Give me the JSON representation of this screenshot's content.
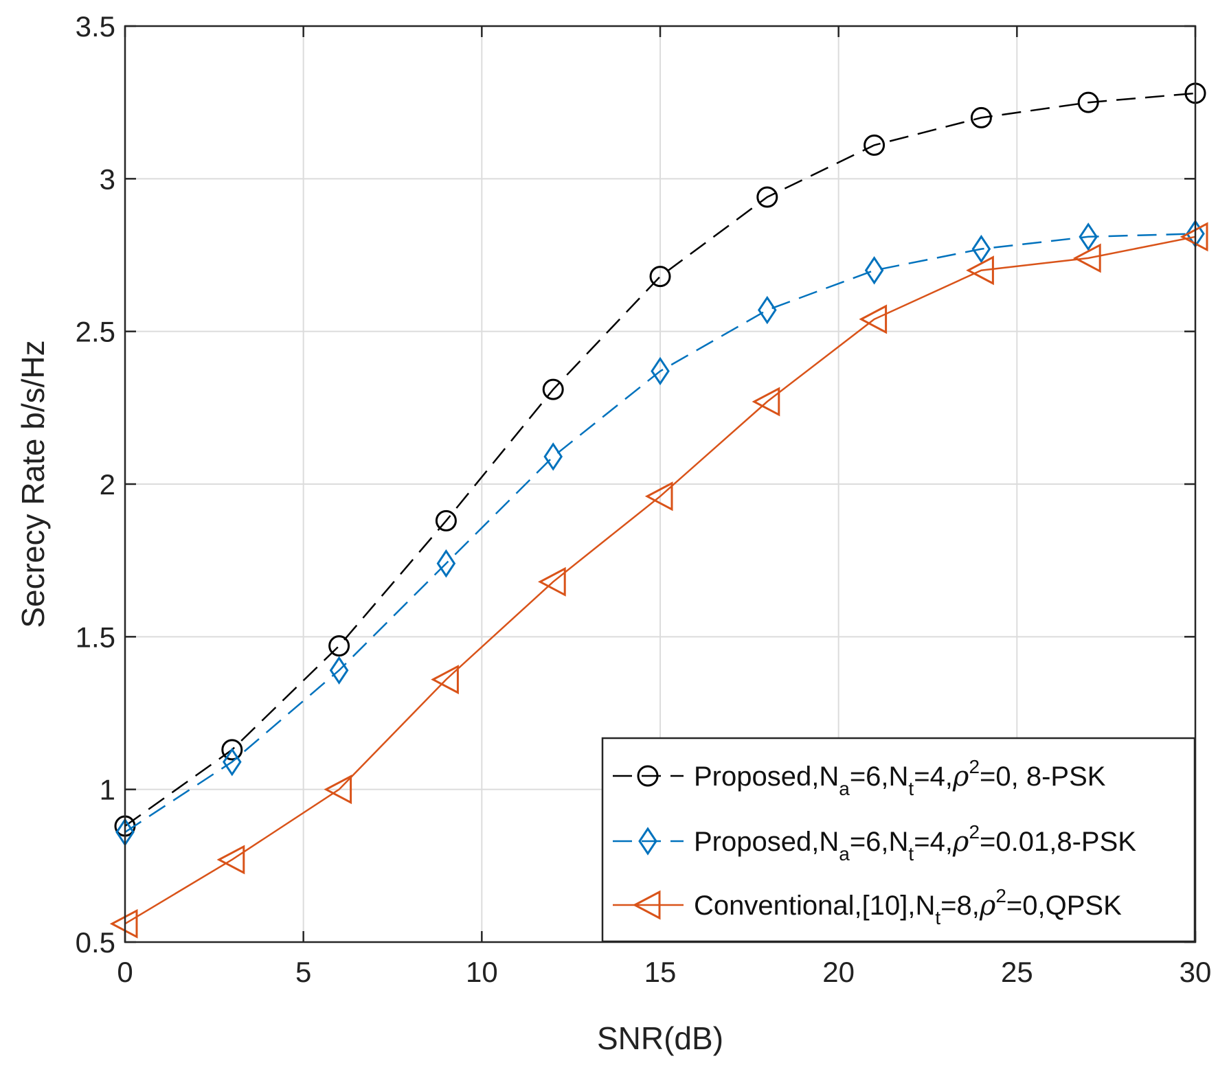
{
  "chart_data": {
    "type": "line",
    "title": "",
    "xlabel": "SNR(dB)",
    "ylabel": "Secrecy Rate b/s/Hz",
    "xlim": [
      0,
      30
    ],
    "ylim": [
      0.5,
      3.5
    ],
    "xticks": [
      0,
      5,
      10,
      15,
      20,
      25,
      30
    ],
    "xtick_labels": [
      "0",
      "5",
      "10",
      "15",
      "20",
      "25",
      "30"
    ],
    "yticks": [
      0.5,
      1,
      1.5,
      2,
      2.5,
      3,
      3.5
    ],
    "ytick_labels": [
      "0.5",
      "1",
      "1.5",
      "2",
      "2.5",
      "3",
      "3.5"
    ],
    "grid": true,
    "legend_position": "bottom-right",
    "x": [
      0,
      3,
      6,
      9,
      12,
      15,
      18,
      21,
      24,
      27,
      30
    ],
    "series": [
      {
        "name": "Proposed,N_a=6,N_t=4,ρ^2=0, 8-PSK",
        "legend_parts": [
          "Proposed,N",
          "a",
          "=6,N",
          "t",
          "=4,",
          "ρ",
          "2",
          "=0, 8-PSK"
        ],
        "values": [
          0.88,
          1.13,
          1.47,
          1.88,
          2.31,
          2.68,
          2.94,
          3.11,
          3.2,
          3.25,
          3.28
        ],
        "color": "#000000",
        "marker": "circle",
        "linestyle": "dashed"
      },
      {
        "name": "Proposed,N_a=6,N_t=4,ρ^2=0.01,8-PSK",
        "legend_parts": [
          "Proposed,N",
          "a",
          "=6,N",
          "t",
          "=4,",
          "ρ",
          "2",
          "=0.01,8-PSK"
        ],
        "values": [
          0.86,
          1.09,
          1.39,
          1.74,
          2.09,
          2.37,
          2.57,
          2.7,
          2.77,
          2.81,
          2.82
        ],
        "color": "#0072BD",
        "marker": "diamond",
        "linestyle": "dashed"
      },
      {
        "name": "Conventional,[10],N_t=8,ρ^2=0,QPSK",
        "legend_parts": [
          "Conventional,[10],N",
          "t",
          "=8,",
          "ρ",
          "2",
          "=0,QPSK"
        ],
        "values": [
          0.56,
          0.77,
          1.0,
          1.36,
          1.68,
          1.96,
          2.27,
          2.54,
          2.7,
          2.74,
          2.81
        ],
        "color": "#D95319",
        "marker": "triangle-left",
        "linestyle": "solid"
      }
    ]
  }
}
